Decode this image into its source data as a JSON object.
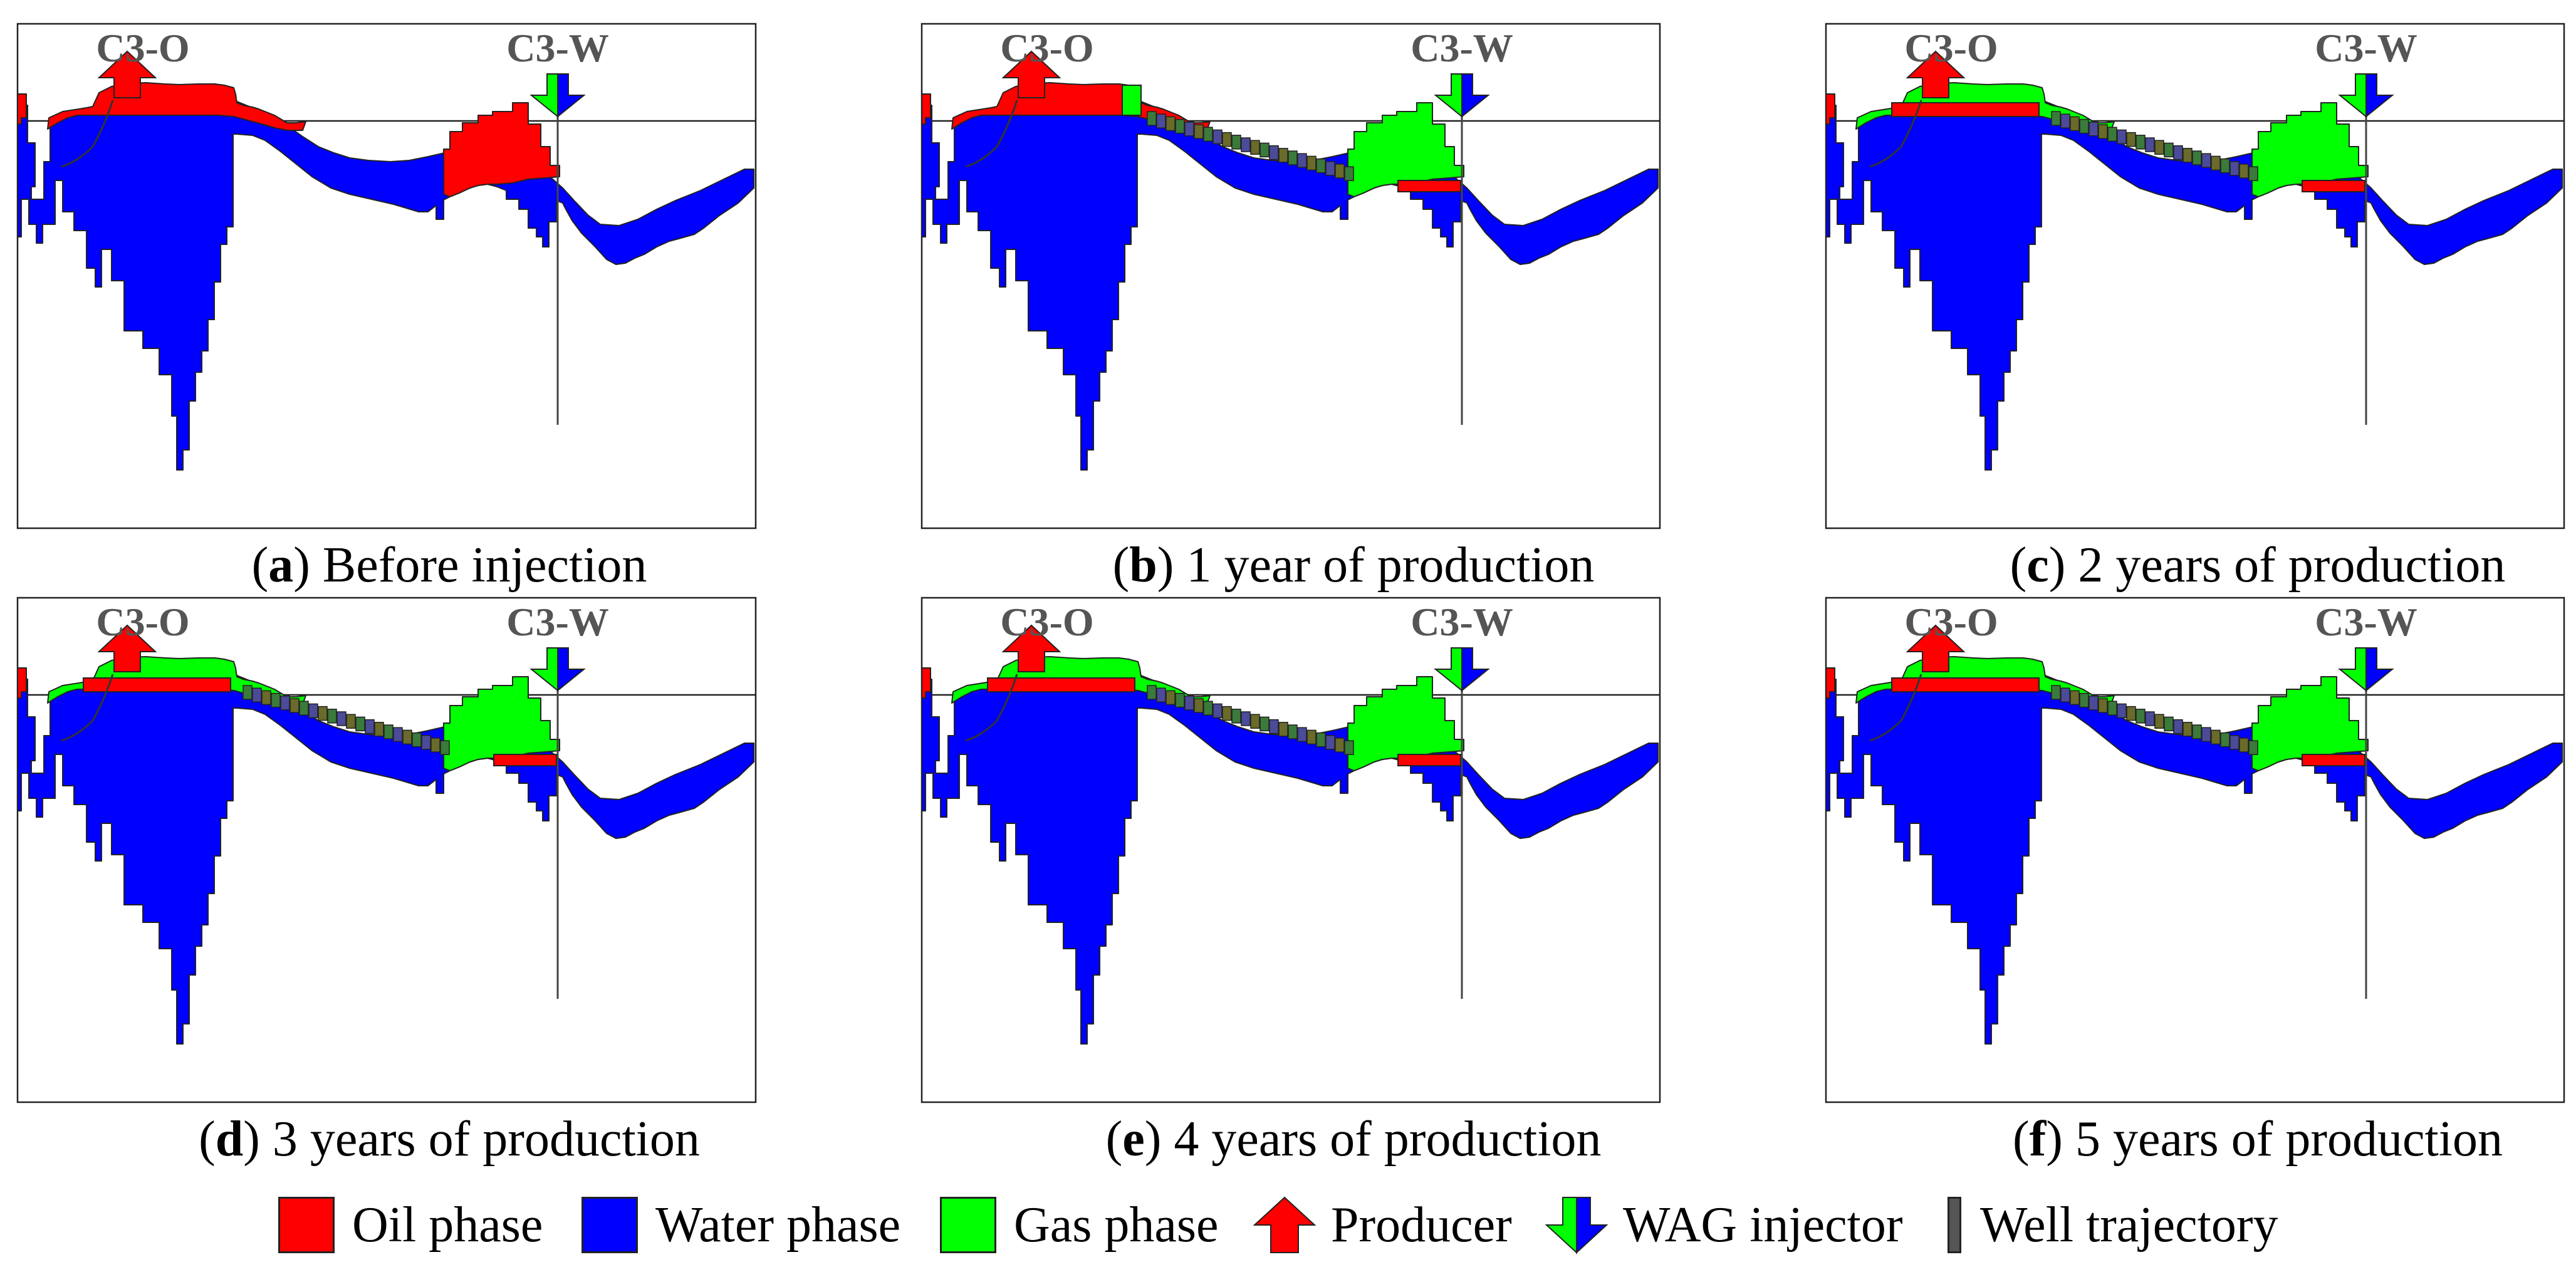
{
  "wells": {
    "producer_label": "C3-O",
    "injector_label": "C3-W"
  },
  "colors": {
    "oil": "#ff0000",
    "water": "#0000ff",
    "gas": "#00ff00",
    "trajectory": "#555555",
    "grid_edge": "#222222"
  },
  "panels": [
    {
      "letter": "a",
      "caption": "Before injection",
      "stage": 0
    },
    {
      "letter": "b",
      "caption": "1 year of production",
      "stage": 1
    },
    {
      "letter": "c",
      "caption": "2 years of production",
      "stage": 2
    },
    {
      "letter": "d",
      "caption": "3 years of production",
      "stage": 3
    },
    {
      "letter": "e",
      "caption": "4 years of production",
      "stage": 4
    },
    {
      "letter": "f",
      "caption": "5 years of production",
      "stage": 5
    }
  ],
  "legend": {
    "oil": "Oil phase",
    "water": "Water phase",
    "gas": "Gas phase",
    "producer": "Producer",
    "injector": "WAG injector",
    "trajectory": "Well trajectory"
  }
}
